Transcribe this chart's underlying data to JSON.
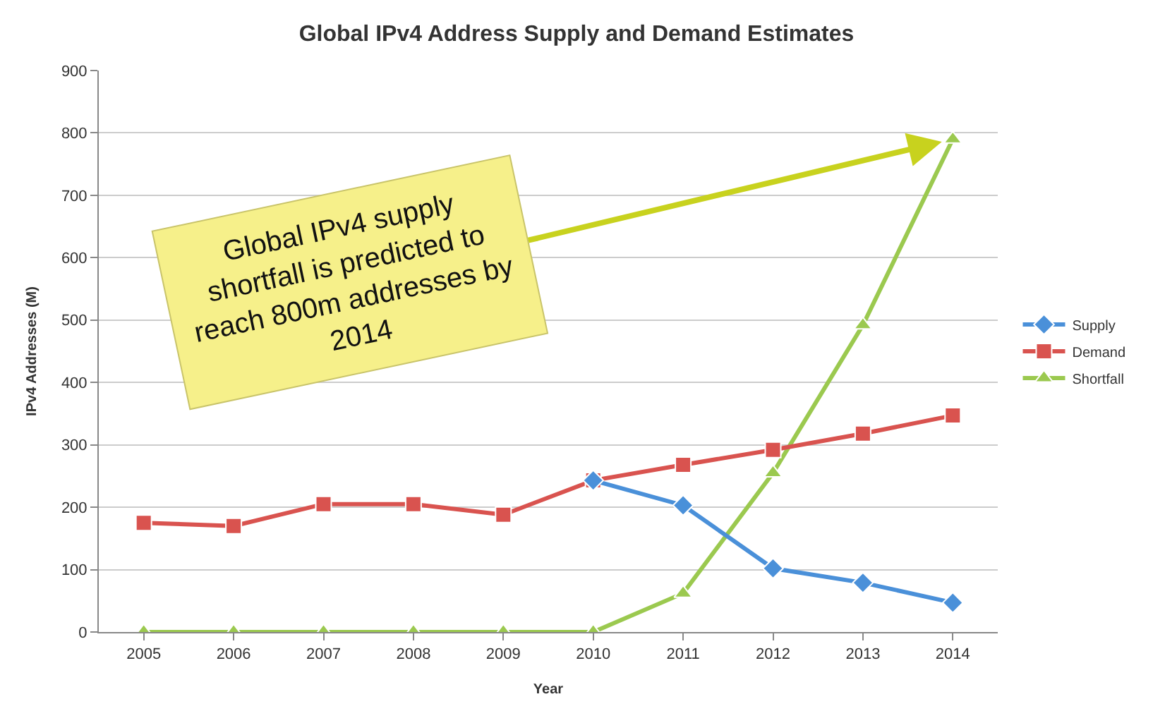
{
  "chart_data": {
    "type": "line",
    "title": "Global IPv4 Address Supply and Demand Estimates",
    "xlabel": "Year",
    "ylabel": "IPv4 Addresses (M)",
    "categories": [
      "2005",
      "2006",
      "2007",
      "2008",
      "2009",
      "2010",
      "2011",
      "2012",
      "2013",
      "2014"
    ],
    "series": [
      {
        "name": "Supply",
        "color": "#4a90d9",
        "marker": "diamond",
        "values": [
          null,
          null,
          null,
          null,
          null,
          243,
          203,
          102,
          79,
          47
        ]
      },
      {
        "name": "Demand",
        "color": "#d9534f",
        "marker": "square",
        "values": [
          175,
          170,
          205,
          205,
          188,
          243,
          268,
          292,
          318,
          347
        ]
      },
      {
        "name": "Shortfall",
        "color": "#9bc94f",
        "marker": "triangle",
        "values": [
          0,
          0,
          0,
          0,
          0,
          0,
          62,
          255,
          492,
          790
        ]
      }
    ],
    "ylim": [
      0,
      900
    ],
    "yticks": [
      0,
      100,
      200,
      300,
      400,
      500,
      600,
      700,
      800,
      900
    ],
    "grid": "y",
    "legend": "right",
    "annotations": [
      {
        "text": "Global IPv4 supply\nshortfall is predicted to\nreach 800m addresses by\n2014",
        "x": "2014",
        "y": 790
      }
    ]
  }
}
